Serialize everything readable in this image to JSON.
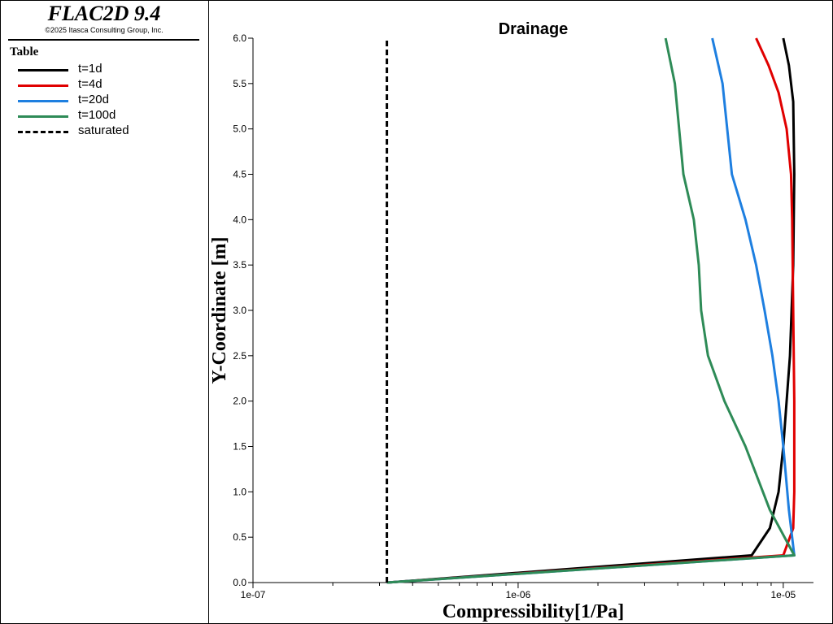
{
  "app": {
    "title": "FLAC2D 9.4",
    "copyright": "©2025 Itasca Consulting Group, Inc."
  },
  "legend": {
    "title": "Table",
    "items": [
      {
        "label": "t=1d",
        "color": "#000000",
        "style": "solid"
      },
      {
        "label": "t=4d",
        "color": "#e00000",
        "style": "solid"
      },
      {
        "label": "t=20d",
        "color": "#1e7fe0",
        "style": "solid"
      },
      {
        "label": "t=100d",
        "color": "#2e8b57",
        "style": "solid"
      },
      {
        "label": "saturated",
        "color": "#000000",
        "style": "dashed"
      }
    ]
  },
  "chart_data": {
    "type": "line",
    "title": "Drainage",
    "xlabel": "Compressibility[1/Pa]",
    "ylabel": "Y-Coordinate [m]",
    "xscale": "log",
    "xlim": [
      1e-07,
      1.3e-05
    ],
    "ylim": [
      0,
      6
    ],
    "xticks": [
      1e-07,
      1e-06,
      1e-05
    ],
    "xtick_labels": [
      "1e-07",
      "1e-06",
      "1e-05"
    ],
    "yticks": [
      0,
      0.5,
      1,
      1.5,
      2,
      2.5,
      3,
      3.5,
      4,
      4.5,
      5,
      5.5,
      6
    ],
    "ytick_labels": [
      "0.0",
      "0.5",
      "1.0",
      "1.5",
      "2.0",
      "2.5",
      "3.0",
      "3.5",
      "4.0",
      "4.5",
      "5.0",
      "5.5",
      "6.0"
    ],
    "series": [
      {
        "name": "t=1d",
        "color": "#000000",
        "dash": false,
        "x": [
          3.2e-07,
          7.6e-06,
          8.9e-06,
          9.6e-06,
          1e-05,
          1.06e-05,
          1.09e-05,
          1.1e-05,
          1.09e-05,
          1.05e-05,
          1e-05
        ],
        "y": [
          0.0,
          0.3,
          0.6,
          1.0,
          1.5,
          2.5,
          3.5,
          4.5,
          5.3,
          5.7,
          6.0
        ]
      },
      {
        "name": "t=4d",
        "color": "#e00000",
        "dash": false,
        "x": [
          3.2e-07,
          1e-05,
          1.09e-05,
          1.1e-05,
          1.1e-05,
          1.09e-05,
          1.08e-05,
          1.07e-05,
          1.03e-05,
          9.6e-06,
          8.8e-06,
          7.9e-06
        ],
        "y": [
          0.0,
          0.3,
          0.6,
          1.0,
          2.0,
          3.0,
          4.0,
          4.5,
          5.0,
          5.4,
          5.7,
          6.0
        ]
      },
      {
        "name": "t=20d",
        "color": "#1e7fe0",
        "dash": false,
        "x": [
          3.2e-07,
          1.1e-05,
          1.05e-05,
          1e-05,
          9.6e-06,
          9.1e-06,
          8.5e-06,
          7.9e-06,
          7.2e-06,
          6.4e-06,
          5.9e-06,
          5.4e-06
        ],
        "y": [
          0.0,
          0.3,
          0.8,
          1.5,
          2.0,
          2.5,
          3.0,
          3.5,
          4.0,
          4.5,
          5.5,
          6.0
        ]
      },
      {
        "name": "t=100d",
        "color": "#2e8b57",
        "dash": false,
        "x": [
          3.2e-07,
          1.1e-05,
          8.9e-06,
          7.2e-06,
          6e-06,
          5.2e-06,
          4.9e-06,
          4.8e-06,
          4.6e-06,
          4.2e-06,
          3.9e-06,
          3.6e-06
        ],
        "y": [
          0.0,
          0.3,
          0.8,
          1.5,
          2.0,
          2.5,
          3.0,
          3.5,
          4.0,
          4.5,
          5.5,
          6.0
        ]
      },
      {
        "name": "saturated",
        "color": "#000000",
        "dash": true,
        "x": [
          3.2e-07,
          3.2e-07
        ],
        "y": [
          0.0,
          6.0
        ]
      }
    ]
  }
}
